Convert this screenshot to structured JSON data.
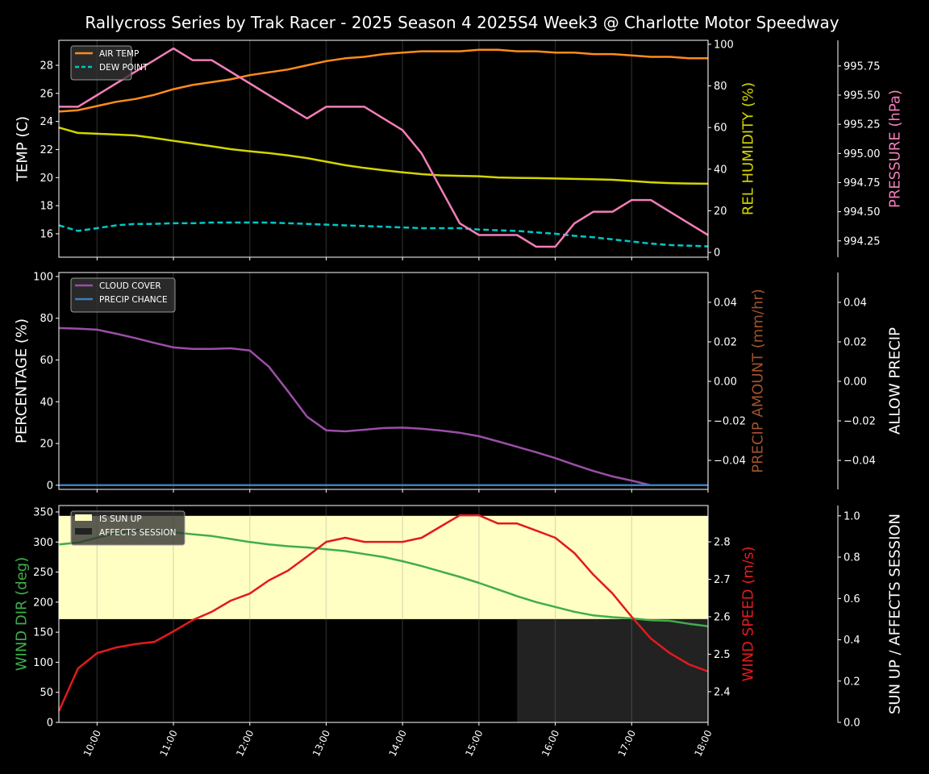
{
  "title": "Rallycross Series by Trak Racer - 2025 Season 4 2025S4 Week3 @ Charlotte Motor Speedway",
  "chart_data": {
    "type": "line",
    "x_range_hours": [
      9.5,
      18
    ],
    "x_ticks": [
      "10:00",
      "11:00",
      "12:00",
      "13:00",
      "14:00",
      "15:00",
      "16:00",
      "17:00",
      "18:00"
    ],
    "x_times": [
      "09:30",
      "09:45",
      "10:00",
      "10:15",
      "10:30",
      "10:45",
      "11:00",
      "11:15",
      "11:30",
      "11:45",
      "12:00",
      "12:15",
      "12:30",
      "12:45",
      "13:00",
      "13:15",
      "13:30",
      "13:45",
      "14:00",
      "14:15",
      "14:30",
      "14:45",
      "15:00",
      "15:15",
      "15:30",
      "15:45",
      "16:00",
      "16:15",
      "16:30",
      "16:45",
      "17:00",
      "17:15",
      "17:30",
      "17:45",
      "18:00"
    ],
    "panels": [
      {
        "axes": {
          "left": {
            "label": "TEMP (C)",
            "color": "#ffffff",
            "range": [
              14.33,
              29.78
            ],
            "ticks": [
              "16",
              "18",
              "20",
              "22",
              "24",
              "26",
              "28"
            ]
          },
          "right": {
            "label": "REL HUMIDITY (%)",
            "color": "#d4d400",
            "range": [
              -2.3,
              101.9
            ],
            "ticks": [
              "0",
              "20",
              "40",
              "60",
              "80",
              "100"
            ]
          },
          "right2": {
            "label": "PRESSURE (hPa)",
            "color": "#f27eb8",
            "range": [
              994.11,
              995.97
            ],
            "ticks": [
              "994.25",
              "994.50",
              "994.75",
              "995.00",
              "995.25",
              "995.50",
              "995.75"
            ]
          }
        },
        "series": [
          {
            "name": "AIR TEMP",
            "axis": "left",
            "color": "#ff8c1a",
            "dash": false,
            "legend": true,
            "values": [
              24.7,
              24.8,
              25.1,
              25.4,
              25.6,
              25.9,
              26.3,
              26.6,
              26.8,
              27.0,
              27.3,
              27.5,
              27.7,
              28.0,
              28.3,
              28.5,
              28.6,
              28.8,
              28.9,
              29.0,
              29.0,
              29.0,
              29.1,
              29.1,
              29.0,
              29.0,
              28.9,
              28.9,
              28.8,
              28.8,
              28.7,
              28.6,
              28.6,
              28.5,
              28.5
            ]
          },
          {
            "name": "DEW POINT",
            "axis": "left",
            "color": "#00c8c8",
            "dash": true,
            "legend": true,
            "values": [
              16.6,
              16.2,
              16.4,
              16.6,
              16.7,
              16.7,
              16.75,
              16.75,
              16.8,
              16.8,
              16.8,
              16.8,
              16.75,
              16.7,
              16.65,
              16.6,
              16.55,
              16.5,
              16.45,
              16.4,
              16.4,
              16.4,
              16.3,
              16.25,
              16.2,
              16.1,
              16.0,
              15.85,
              15.75,
              15.6,
              15.45,
              15.3,
              15.2,
              15.15,
              15.1
            ]
          },
          {
            "name": "REL HUMIDITY",
            "axis": "right",
            "color": "#d4d400",
            "dash": false,
            "legend": false,
            "values": [
              60,
              57.4,
              57,
              56.6,
              56.2,
              55,
              53.6,
              52.3,
              51,
              49.6,
              48.6,
              47.7,
              46.6,
              45.3,
              43.6,
              41.9,
              40.6,
              39.5,
              38.5,
              37.6,
              37,
              36.8,
              36.6,
              36,
              35.8,
              35.7,
              35.5,
              35.3,
              35.1,
              34.9,
              34.3,
              33.7,
              33.3,
              33.1,
              33
            ]
          },
          {
            "name": "PRESSURE",
            "axis": "right2",
            "color": "#f27eb8",
            "dash": false,
            "legend": false,
            "values": [
              995.4,
              995.4,
              995.5,
              995.6,
              995.7,
              995.8,
              995.9,
              995.8,
              995.8,
              995.7,
              995.6,
              995.5,
              995.4,
              995.3,
              995.4,
              995.4,
              995.4,
              995.3,
              995.2,
              995.0,
              994.7,
              994.4,
              994.3,
              994.3,
              994.3,
              994.2,
              994.2,
              994.4,
              994.5,
              994.5,
              994.6,
              994.6,
              994.5,
              994.4,
              994.3
            ]
          }
        ],
        "fills": []
      },
      {
        "axes": {
          "left": {
            "label": "PERCENTAGE (%)",
            "color": "#ffffff",
            "range": [
              -2,
              101.9
            ],
            "ticks": [
              "0",
              "20",
              "40",
              "60",
              "80",
              "100"
            ]
          },
          "right": {
            "label": "PRECIP AMOUNT (mm/hr)",
            "color": "#a0522d",
            "range": [
              -0.0547,
              0.0551
            ],
            "ticks": [
              "−0.04",
              "−0.02",
              "0.00",
              "0.02",
              "0.04"
            ]
          },
          "right2": {
            "label": "ALLOW PRECIP",
            "color": "#ffffff",
            "range": [
              -0.0547,
              0.0551
            ],
            "ticks": [
              "−0.04",
              "−0.02",
              "0.00",
              "0.02",
              "0.04"
            ]
          }
        },
        "series": [
          {
            "name": "CLOUD COVER",
            "axis": "left",
            "color": "#9b4ea8",
            "dash": false,
            "legend": true,
            "values": [
              75.3,
              75,
              74.5,
              72.6,
              70.5,
              68.2,
              66,
              65.3,
              65.3,
              65.6,
              64.5,
              56.8,
              45,
              32.8,
              26.3,
              25.8,
              26.6,
              27.4,
              27.6,
              27.1,
              26.2,
              25.1,
              23.5,
              21,
              18.4,
              15.8,
              13,
              9.8,
              6.8,
              4.2,
              2.2,
              0,
              0,
              0,
              0
            ]
          },
          {
            "name": "PRECIP CHANCE",
            "axis": "left",
            "color": "#3a7ebf",
            "dash": false,
            "legend": true,
            "values": [
              0,
              0,
              0,
              0,
              0,
              0,
              0,
              0,
              0,
              0,
              0,
              0,
              0,
              0,
              0,
              0,
              0,
              0,
              0,
              0,
              0,
              0,
              0,
              0,
              0,
              0,
              0,
              0,
              0,
              0,
              0,
              0,
              0,
              0,
              0
            ]
          }
        ],
        "fills": []
      },
      {
        "axes": {
          "left": {
            "label": "WIND DIR (deg)",
            "color": "#3fae49",
            "range": [
              0,
              360.7
            ],
            "ticks": [
              "0",
              "50",
              "100",
              "150",
              "200",
              "250",
              "300",
              "350"
            ]
          },
          "right": {
            "label": "WIND SPEED (m/s)",
            "color": "#e31a1c",
            "range": [
              2.318,
              2.897
            ],
            "ticks": [
              "2.4",
              "2.5",
              "2.6",
              "2.7",
              "2.8"
            ]
          },
          "right2": {
            "label": "SUN UP / AFFECTS SESSION",
            "color": "#ffffff",
            "range": [
              0,
              1.05
            ],
            "ticks": [
              "0.0",
              "0.2",
              "0.4",
              "0.6",
              "0.8",
              "1.0"
            ]
          }
        },
        "series": [
          {
            "name": "WIND DIR",
            "axis": "left",
            "color": "#3fae49",
            "dash": false,
            "legend": false,
            "values": [
              296,
              299,
              307,
              315,
              320,
              320,
              316,
              313,
              310,
              305,
              300,
              296,
              293,
              291,
              288,
              285,
              280,
              275,
              268,
              260,
              251,
              242,
              232,
              221,
              210,
              200,
              192,
              184,
              178,
              175,
              173,
              170,
              169,
              164,
              160
            ]
          },
          {
            "name": "WIND SPEED",
            "axis": "right",
            "color": "#e31a1c",
            "dash": false,
            "legend": false,
            "values": [
              2.348,
              2.462,
              2.503,
              2.518,
              2.527,
              2.533,
              2.561,
              2.591,
              2.613,
              2.643,
              2.662,
              2.697,
              2.723,
              2.761,
              2.8,
              2.811,
              2.8,
              2.8,
              2.8,
              2.811,
              2.841,
              2.871,
              2.871,
              2.849,
              2.849,
              2.83,
              2.811,
              2.77,
              2.712,
              2.662,
              2.6,
              2.542,
              2.503,
              2.473,
              2.454
            ]
          }
        ],
        "fills": [
          {
            "name": "IS SUN UP",
            "axis": "right2",
            "color": "#ffffc4",
            "band": [
              0.5,
              1.0
            ],
            "values": [
              1,
              1,
              1,
              1,
              1,
              1,
              1,
              1,
              1,
              1,
              1,
              1,
              1,
              1,
              1,
              1,
              1,
              1,
              1,
              1,
              1,
              1,
              1,
              1,
              1,
              1,
              1,
              1,
              1,
              1,
              1,
              1,
              1,
              1,
              1
            ]
          },
          {
            "name": "AFFECTS SESSION",
            "axis": "right2",
            "color": "#222222",
            "band": [
              0.0,
              0.5
            ],
            "values": [
              0,
              0,
              0,
              0,
              0,
              0,
              0,
              0,
              0,
              0,
              0,
              0,
              0,
              0,
              0,
              0,
              0,
              0,
              0,
              0,
              0,
              0,
              0,
              0,
              1,
              1,
              1,
              1,
              1,
              1,
              1,
              1,
              1,
              1,
              1
            ]
          }
        ]
      }
    ]
  }
}
